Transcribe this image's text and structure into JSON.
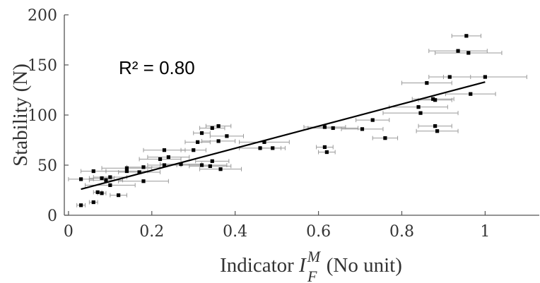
{
  "chart_data": {
    "type": "scatter",
    "title": "",
    "xlabel": {
      "prefix": "Indicator ",
      "symbol": "I",
      "sup": "M",
      "sub": "F",
      "suffix": " (No unit)"
    },
    "ylabel": "Stability (N)",
    "xlim": [
      -0.01,
      1.13
    ],
    "ylim": [
      0,
      200
    ],
    "xticks": [
      0,
      0.2,
      0.4,
      0.6,
      0.8,
      1
    ],
    "xtick_labels": [
      "0",
      "0.2",
      "0.4",
      "0.6",
      "0.8",
      "1"
    ],
    "yticks": [
      0,
      50,
      100,
      150,
      200
    ],
    "ytick_labels": [
      "0",
      "50",
      "100",
      "150",
      "200"
    ],
    "grid": false,
    "annotation": "R² = 0.80",
    "fit_line": {
      "x": [
        0.03,
        1.0
      ],
      "y": [
        26,
        133
      ]
    },
    "points": [
      {
        "x": 0.03,
        "y": 10,
        "xerr": 0.01
      },
      {
        "x": 0.06,
        "y": 13,
        "xerr": 0.01
      },
      {
        "x": 0.07,
        "y": 23,
        "xerr": 0.01
      },
      {
        "x": 0.08,
        "y": 22,
        "xerr": 0.01
      },
      {
        "x": 0.12,
        "y": 20,
        "xerr": 0.02
      },
      {
        "x": 0.03,
        "y": 36,
        "xerr": 0.03
      },
      {
        "x": 0.06,
        "y": 44,
        "xerr": 0.03
      },
      {
        "x": 0.08,
        "y": 37,
        "xerr": 0.03
      },
      {
        "x": 0.09,
        "y": 35,
        "xerr": 0.04
      },
      {
        "x": 0.1,
        "y": 38,
        "xerr": 0.04
      },
      {
        "x": 0.1,
        "y": 30,
        "xerr": 0.06
      },
      {
        "x": 0.14,
        "y": 44,
        "xerr": 0.05
      },
      {
        "x": 0.14,
        "y": 47,
        "xerr": 0.06
      },
      {
        "x": 0.17,
        "y": 43,
        "xerr": 0.05
      },
      {
        "x": 0.18,
        "y": 48,
        "xerr": 0.04
      },
      {
        "x": 0.18,
        "y": 34,
        "xerr": 0.06
      },
      {
        "x": 0.22,
        "y": 56,
        "xerr": 0.05
      },
      {
        "x": 0.23,
        "y": 65,
        "xerr": 0.05
      },
      {
        "x": 0.23,
        "y": 50,
        "xerr": 0.04
      },
      {
        "x": 0.24,
        "y": 58,
        "xerr": 0.05
      },
      {
        "x": 0.27,
        "y": 51,
        "xerr": 0.05
      },
      {
        "x": 0.3,
        "y": 65,
        "xerr": 0.03
      },
      {
        "x": 0.31,
        "y": 73,
        "xerr": 0.03
      },
      {
        "x": 0.32,
        "y": 82,
        "xerr": 0.02
      },
      {
        "x": 0.32,
        "y": 50,
        "xerr": 0.06
      },
      {
        "x": 0.34,
        "y": 49,
        "xerr": 0.05
      },
      {
        "x": 0.345,
        "y": 54,
        "xerr": 0.04
      },
      {
        "x": 0.345,
        "y": 87,
        "xerr": 0.03
      },
      {
        "x": 0.36,
        "y": 89,
        "xerr": 0.03
      },
      {
        "x": 0.36,
        "y": 74,
        "xerr": 0.04
      },
      {
        "x": 0.365,
        "y": 46,
        "xerr": 0.05
      },
      {
        "x": 0.38,
        "y": 79,
        "xerr": 0.04
      },
      {
        "x": 0.46,
        "y": 67,
        "xerr": 0.05
      },
      {
        "x": 0.47,
        "y": 73,
        "xerr": 0.06
      },
      {
        "x": 0.49,
        "y": 67,
        "xerr": 0.03
      },
      {
        "x": 0.615,
        "y": 88,
        "xerr": 0.05
      },
      {
        "x": 0.615,
        "y": 68,
        "xerr": 0.02
      },
      {
        "x": 0.62,
        "y": 63,
        "xerr": 0.02
      },
      {
        "x": 0.635,
        "y": 87,
        "xerr": 0.06
      },
      {
        "x": 0.705,
        "y": 86,
        "xerr": 0.05
      },
      {
        "x": 0.73,
        "y": 95,
        "xerr": 0.04
      },
      {
        "x": 0.76,
        "y": 77,
        "xerr": 0.03
      },
      {
        "x": 0.84,
        "y": 108,
        "xerr": 0.07
      },
      {
        "x": 0.845,
        "y": 102,
        "xerr": 0.09
      },
      {
        "x": 0.86,
        "y": 132,
        "xerr": 0.06
      },
      {
        "x": 0.875,
        "y": 116,
        "xerr": 0.05
      },
      {
        "x": 0.88,
        "y": 115,
        "xerr": 0.04
      },
      {
        "x": 0.88,
        "y": 89,
        "xerr": 0.04
      },
      {
        "x": 0.885,
        "y": 84,
        "xerr": 0.05
      },
      {
        "x": 0.915,
        "y": 138,
        "xerr": 0.05
      },
      {
        "x": 0.935,
        "y": 164,
        "xerr": 0.07
      },
      {
        "x": 0.955,
        "y": 179,
        "xerr": 0.035
      },
      {
        "x": 0.96,
        "y": 162,
        "xerr": 0.08
      },
      {
        "x": 0.965,
        "y": 121,
        "xerr": 0.06
      },
      {
        "x": 1.0,
        "y": 138,
        "xerr": 0.1
      }
    ]
  }
}
